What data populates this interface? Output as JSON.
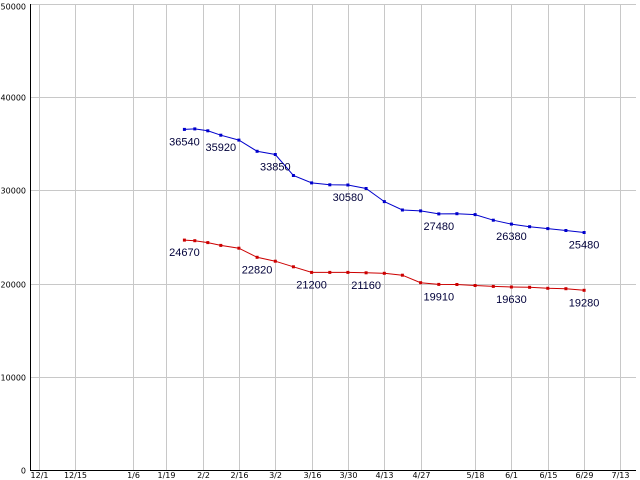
{
  "chart_data": {
    "type": "line",
    "grid": true,
    "legend": "none",
    "ylim": [
      0,
      50000
    ],
    "y_ticks": [
      0,
      10000,
      20000,
      30000,
      40000,
      50000
    ],
    "x_ticks": [
      {
        "label": "12/1",
        "x": 0
      },
      {
        "label": "12/15",
        "x": 14
      },
      {
        "label": "1/6",
        "x": 36
      },
      {
        "label": "1/19",
        "x": 49
      },
      {
        "label": "2/2",
        "x": 63
      },
      {
        "label": "2/16",
        "x": 77
      },
      {
        "label": "3/2",
        "x": 91
      },
      {
        "label": "3/16",
        "x": 105
      },
      {
        "label": "3/30",
        "x": 119
      },
      {
        "label": "4/13",
        "x": 133
      },
      {
        "label": "4/27",
        "x": 147
      },
      {
        "label": "5/18",
        "x": 168
      },
      {
        "label": "6/1",
        "x": 182
      },
      {
        "label": "6/15",
        "x": 196
      },
      {
        "label": "6/29",
        "x": 210
      },
      {
        "label": "7/13",
        "x": 224
      }
    ],
    "xlim": [
      -3.5,
      230
    ],
    "series": [
      {
        "color": "#0000cc",
        "points": [
          {
            "x": 56,
            "y": 36540,
            "label": "36540"
          },
          {
            "x": 60,
            "y": 36600
          },
          {
            "x": 65,
            "y": 36400
          },
          {
            "x": 70,
            "y": 35920,
            "label": "35920"
          },
          {
            "x": 77,
            "y": 35400
          },
          {
            "x": 84,
            "y": 34200
          },
          {
            "x": 91,
            "y": 33850,
            "label": "33850"
          },
          {
            "x": 98,
            "y": 31600
          },
          {
            "x": 105,
            "y": 30800
          },
          {
            "x": 112,
            "y": 30600
          },
          {
            "x": 119,
            "y": 30580,
            "label": "30580"
          },
          {
            "x": 126,
            "y": 30200
          },
          {
            "x": 133,
            "y": 28800
          },
          {
            "x": 140,
            "y": 27900
          },
          {
            "x": 147,
            "y": 27800
          },
          {
            "x": 154,
            "y": 27480,
            "label": "27480"
          },
          {
            "x": 161,
            "y": 27500
          },
          {
            "x": 168,
            "y": 27400
          },
          {
            "x": 175,
            "y": 26800
          },
          {
            "x": 182,
            "y": 26380,
            "label": "26380"
          },
          {
            "x": 189,
            "y": 26100
          },
          {
            "x": 196,
            "y": 25900
          },
          {
            "x": 203,
            "y": 25700
          },
          {
            "x": 210,
            "y": 25480,
            "label": "25480"
          }
        ]
      },
      {
        "color": "#cc0000",
        "points": [
          {
            "x": 56,
            "y": 24670,
            "label": "24670"
          },
          {
            "x": 60,
            "y": 24600
          },
          {
            "x": 65,
            "y": 24400
          },
          {
            "x": 70,
            "y": 24100
          },
          {
            "x": 77,
            "y": 23800
          },
          {
            "x": 84,
            "y": 22820,
            "label": "22820"
          },
          {
            "x": 91,
            "y": 22400
          },
          {
            "x": 98,
            "y": 21800
          },
          {
            "x": 105,
            "y": 21200,
            "label": "21200"
          },
          {
            "x": 112,
            "y": 21200
          },
          {
            "x": 119,
            "y": 21200
          },
          {
            "x": 126,
            "y": 21160,
            "label": "21160"
          },
          {
            "x": 133,
            "y": 21100
          },
          {
            "x": 140,
            "y": 20900
          },
          {
            "x": 147,
            "y": 20100
          },
          {
            "x": 154,
            "y": 19910,
            "label": "19910"
          },
          {
            "x": 161,
            "y": 19900
          },
          {
            "x": 168,
            "y": 19800
          },
          {
            "x": 175,
            "y": 19700
          },
          {
            "x": 182,
            "y": 19630,
            "label": "19630"
          },
          {
            "x": 189,
            "y": 19600
          },
          {
            "x": 196,
            "y": 19500
          },
          {
            "x": 203,
            "y": 19450
          },
          {
            "x": 210,
            "y": 19280,
            "label": "19280"
          }
        ]
      }
    ]
  }
}
